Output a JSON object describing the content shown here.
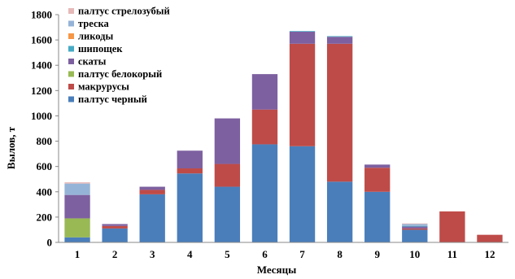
{
  "chart_data": {
    "type": "bar",
    "stacked": true,
    "categories": [
      "1",
      "2",
      "3",
      "4",
      "5",
      "6",
      "7",
      "8",
      "9",
      "10",
      "11",
      "12"
    ],
    "xlabel": "Месяцы",
    "ylabel": "Вылов, т",
    "ylim": [
      0,
      1800
    ],
    "yticks": [
      0,
      200,
      400,
      600,
      800,
      1000,
      1200,
      1400,
      1600,
      1800
    ],
    "grid": false,
    "legend_position": "top-left",
    "series": [
      {
        "name": "палтус черный",
        "color": "#4a7ebb",
        "values": [
          40,
          110,
          380,
          545,
          440,
          775,
          760,
          480,
          400,
          100,
          0,
          0
        ]
      },
      {
        "name": "макрурусы",
        "color": "#be4b48",
        "values": [
          0,
          20,
          35,
          40,
          180,
          275,
          810,
          1090,
          190,
          10,
          245,
          60
        ]
      },
      {
        "name": "палтус белокорый",
        "color": "#98b954",
        "values": [
          150,
          0,
          0,
          0,
          0,
          0,
          0,
          0,
          0,
          0,
          0,
          0
        ]
      },
      {
        "name": "скаты",
        "color": "#7d60a0",
        "values": [
          185,
          15,
          25,
          140,
          360,
          280,
          95,
          55,
          25,
          15,
          0,
          0
        ]
      },
      {
        "name": "шипощек",
        "color": "#46aac5",
        "values": [
          0,
          0,
          0,
          0,
          0,
          0,
          5,
          5,
          0,
          5,
          0,
          0
        ]
      },
      {
        "name": "ликоды",
        "color": "#f79646",
        "values": [
          0,
          0,
          0,
          0,
          0,
          0,
          0,
          0,
          0,
          0,
          0,
          0
        ]
      },
      {
        "name": "треска",
        "color": "#95b3d7",
        "values": [
          90,
          0,
          0,
          0,
          0,
          0,
          0,
          0,
          0,
          15,
          0,
          0
        ]
      },
      {
        "name": "палтус стрелозубый",
        "color": "#e6b9b8",
        "values": [
          10,
          0,
          0,
          0,
          0,
          0,
          0,
          0,
          0,
          5,
          0,
          0
        ]
      }
    ]
  }
}
